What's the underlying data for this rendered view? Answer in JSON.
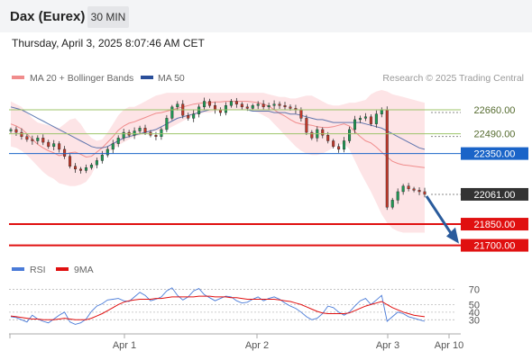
{
  "header": {
    "title": "Dax (Eurex)",
    "timeframe": "30 MIN",
    "datetime": "Thursday, April 3, 2025 8:07:46 AM CET"
  },
  "footer": {
    "copyright": "Research © 2025 Trading Central"
  },
  "colors": {
    "bollinger": "#f08c8c",
    "ma50": "#2a4f9a",
    "bull": "#1f9a55",
    "bear": "#c0392b",
    "band_fill": "#fde4e6",
    "resistance_line": "#9dc46a",
    "pivot_line": "#1a64c8",
    "support_line": "#e01010",
    "current_price_bg": "#333333",
    "arrow": "#2a5b9c",
    "rsi": "#4a7bd8",
    "rsi_ma": "#e01010"
  },
  "chart_data": {
    "type": "candlestick",
    "legend": [
      {
        "label": "MA 20 + Bollinger Bands"
      },
      {
        "label": "MA 50"
      }
    ],
    "x_ticks": [
      "Apr 1",
      "Apr 2",
      "Apr 3",
      "Apr 10"
    ],
    "ylim": [
      21640,
      22800
    ],
    "levels": [
      {
        "label": "22660.00",
        "value": 22660,
        "kind": "resistance"
      },
      {
        "label": "22490.00",
        "value": 22490,
        "kind": "resistance"
      },
      {
        "label": "22350.00",
        "value": 22350,
        "kind": "pivot"
      },
      {
        "label": "22061.00",
        "value": 22061,
        "kind": "current"
      },
      {
        "label": "21850.00",
        "value": 21850,
        "kind": "support"
      },
      {
        "label": "21700.00",
        "value": 21700,
        "kind": "support"
      }
    ],
    "close": [
      22520,
      22500,
      22470,
      22450,
      22440,
      22460,
      22430,
      22400,
      22420,
      22380,
      22330,
      22260,
      22240,
      22230,
      22250,
      22270,
      22300,
      22340,
      22380,
      22420,
      22460,
      22500,
      22480,
      22510,
      22530,
      22500,
      22480,
      22470,
      22520,
      22600,
      22680,
      22700,
      22620,
      22600,
      22630,
      22680,
      22720,
      22690,
      22660,
      22640,
      22690,
      22720,
      22700,
      22680,
      22670,
      22690,
      22700,
      22680,
      22690,
      22700,
      22690,
      22680,
      22670,
      22660,
      22600,
      22500,
      22460,
      22520,
      22480,
      22440,
      22400,
      22380,
      22440,
      22520,
      22590,
      22600,
      22610,
      22560,
      22630,
      22660,
      21970,
      22020,
      22080,
      22120,
      22100,
      22090,
      22080,
      22061
    ],
    "bb_upper": [
      22720,
      22700,
      22680,
      22640,
      22600,
      22570,
      22560,
      22550,
      22540,
      22530,
      22560,
      22590,
      22600,
      22560,
      22500,
      22460,
      22440,
      22450,
      22500,
      22560,
      22620,
      22660,
      22680,
      22680,
      22700,
      22720,
      22740,
      22760,
      22770,
      22780,
      22780,
      22780,
      22780,
      22780,
      22780,
      22780,
      22780,
      22780,
      22780,
      22780,
      22780,
      22780,
      22780,
      22780,
      22780,
      22780,
      22780,
      22780,
      22770,
      22760,
      22750,
      22750,
      22740,
      22740,
      22750,
      22760,
      22760,
      22740,
      22720,
      22700,
      22690,
      22690,
      22700,
      22710,
      22710,
      22720,
      22730,
      22770,
      22790,
      22800,
      22790,
      22770,
      22760,
      22750,
      22740,
      22730,
      22720,
      22710
    ],
    "bb_lower": [
      22400,
      22390,
      22370,
      22340,
      22300,
      22260,
      22220,
      22190,
      22170,
      22140,
      22130,
      22120,
      22120,
      22130,
      22150,
      22200,
      22280,
      22330,
      22360,
      22380,
      22410,
      22430,
      22450,
      22470,
      22480,
      22490,
      22500,
      22510,
      22510,
      22520,
      22540,
      22560,
      22580,
      22600,
      22620,
      22630,
      22640,
      22640,
      22650,
      22650,
      22660,
      22660,
      22660,
      22660,
      22660,
      22650,
      22640,
      22620,
      22600,
      22560,
      22520,
      22480,
      22440,
      22400,
      22370,
      22350,
      22340,
      22340,
      22350,
      22370,
      22390,
      22410,
      22420,
      22380,
      22300,
      22220,
      22150,
      22080,
      22000,
      21920,
      21860,
      21820,
      21800,
      21790,
      21790,
      21790,
      21790,
      21790
    ],
    "ma50": [
      22680,
      22670,
      22660,
      22640,
      22620,
      22600,
      22580,
      22560,
      22540,
      22520,
      22500,
      22480,
      22460,
      22440,
      22420,
      22400,
      22390,
      22390,
      22400,
      22420,
      22440,
      22460,
      22470,
      22480,
      22490,
      22500,
      22510,
      22520,
      22540,
      22560,
      22580,
      22600,
      22610,
      22620,
      22630,
      22640,
      22650,
      22660,
      22660,
      22660,
      22660,
      22660,
      22660,
      22660,
      22660,
      22650,
      22650,
      22650,
      22650,
      22640,
      22640,
      22640,
      22630,
      22630,
      22620,
      22610,
      22600,
      22590,
      22590,
      22580,
      22570,
      22570,
      22570,
      22570,
      22570,
      22570,
      22560,
      22550,
      22540,
      22530,
      22510,
      22490,
      22470,
      22450,
      22430,
      22410,
      22390,
      22380
    ],
    "rsi": {
      "legend": [
        "RSI",
        "9MA"
      ],
      "ticks": [
        {
          "label": "70",
          "value": 70
        },
        {
          "label": "50",
          "value": 50
        },
        {
          "label": "40",
          "value": 40
        },
        {
          "label": "30",
          "value": 30
        }
      ],
      "ylim": [
        15,
        80
      ],
      "values": [
        34,
        33,
        30,
        27,
        36,
        31,
        28,
        26,
        31,
        36,
        40,
        27,
        24,
        26,
        31,
        41,
        48,
        51,
        56,
        57,
        58,
        55,
        54,
        60,
        66,
        62,
        55,
        57,
        60,
        68,
        72,
        62,
        56,
        60,
        68,
        71,
        63,
        59,
        55,
        58,
        61,
        60,
        55,
        52,
        53,
        57,
        60,
        55,
        58,
        60,
        57,
        52,
        48,
        45,
        40,
        34,
        30,
        32,
        38,
        48,
        46,
        40,
        36,
        40,
        48,
        55,
        58,
        50,
        56,
        62,
        28,
        34,
        40,
        38,
        34,
        32,
        30,
        28
      ],
      "ma": [
        35,
        34,
        33,
        32,
        31,
        31,
        30,
        30,
        30,
        31,
        32,
        31,
        30,
        30,
        30,
        32,
        35,
        38,
        42,
        46,
        50,
        53,
        55,
        56,
        57,
        57,
        57,
        58,
        58,
        59,
        60,
        60,
        60,
        60,
        60,
        61,
        61,
        61,
        60,
        60,
        60,
        59,
        59,
        58,
        57,
        57,
        57,
        57,
        57,
        57,
        56,
        55,
        54,
        52,
        50,
        47,
        44,
        41,
        39,
        38,
        38,
        38,
        38,
        39,
        42,
        45,
        48,
        50,
        52,
        54,
        50,
        46,
        43,
        40,
        38,
        36,
        35,
        34
      ]
    }
  }
}
